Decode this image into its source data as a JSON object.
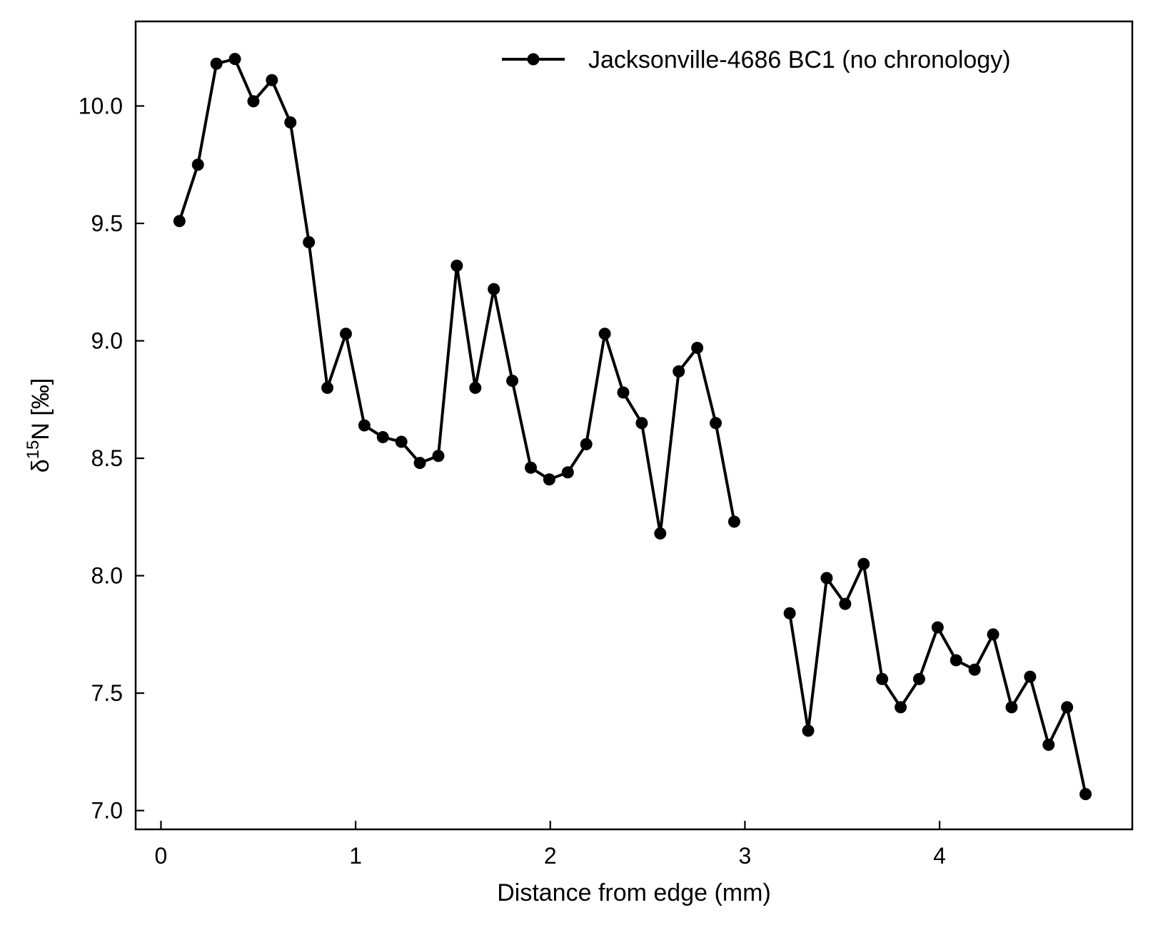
{
  "chart_data": {
    "type": "line",
    "xlabel": "Distance from edge (mm)",
    "ylabel": {
      "prefix": "δ",
      "superscript": "15",
      "suffix": "N [‰]"
    },
    "xlim": [
      -0.13,
      4.99
    ],
    "ylim": [
      6.92,
      10.36
    ],
    "xticks": [
      0,
      1,
      2,
      3,
      4
    ],
    "xtick_labels": [
      "0",
      "1",
      "2",
      "3",
      "4"
    ],
    "yticks": [
      7.0,
      7.5,
      8.0,
      8.5,
      9.0,
      9.5,
      10.0
    ],
    "ytick_labels": [
      "7.0",
      "7.5",
      "8.0",
      "8.5",
      "9.0",
      "9.5",
      "10.0"
    ],
    "grid": false,
    "legend_position": "top-right",
    "series": [
      {
        "name": "Jacksonville-4686 BC1 (no chronology)",
        "color": "#000000",
        "marker": "circle",
        "segments": [
          [
            [
              0.095,
              9.51
            ],
            [
              0.19,
              9.75
            ],
            [
              0.285,
              10.18
            ],
            [
              0.38,
              10.2
            ],
            [
              0.475,
              10.02
            ],
            [
              0.57,
              10.11
            ],
            [
              0.665,
              9.93
            ],
            [
              0.76,
              9.42
            ],
            [
              0.855,
              8.8
            ],
            [
              0.95,
              9.03
            ],
            [
              1.045,
              8.64
            ],
            [
              1.14,
              8.59
            ],
            [
              1.235,
              8.57
            ],
            [
              1.33,
              8.48
            ],
            [
              1.425,
              8.51
            ],
            [
              1.52,
              9.32
            ],
            [
              1.615,
              8.8
            ],
            [
              1.71,
              9.22
            ],
            [
              1.805,
              8.83
            ],
            [
              1.9,
              8.46
            ],
            [
              1.995,
              8.41
            ],
            [
              2.09,
              8.44
            ],
            [
              2.185,
              8.56
            ],
            [
              2.28,
              9.03
            ],
            [
              2.375,
              8.78
            ],
            [
              2.47,
              8.65
            ],
            [
              2.565,
              8.18
            ],
            [
              2.66,
              8.87
            ],
            [
              2.755,
              8.97
            ],
            [
              2.85,
              8.65
            ],
            [
              2.945,
              8.23
            ]
          ],
          [
            [
              3.23,
              7.84
            ],
            [
              3.325,
              7.34
            ],
            [
              3.42,
              7.99
            ],
            [
              3.515,
              7.88
            ],
            [
              3.61,
              8.05
            ],
            [
              3.705,
              7.56
            ],
            [
              3.8,
              7.44
            ],
            [
              3.895,
              7.56
            ],
            [
              3.99,
              7.78
            ],
            [
              4.085,
              7.64
            ],
            [
              4.18,
              7.6
            ],
            [
              4.275,
              7.75
            ],
            [
              4.37,
              7.44
            ],
            [
              4.465,
              7.57
            ],
            [
              4.56,
              7.28
            ],
            [
              4.655,
              7.44
            ],
            [
              4.75,
              7.07
            ]
          ]
        ]
      }
    ]
  }
}
